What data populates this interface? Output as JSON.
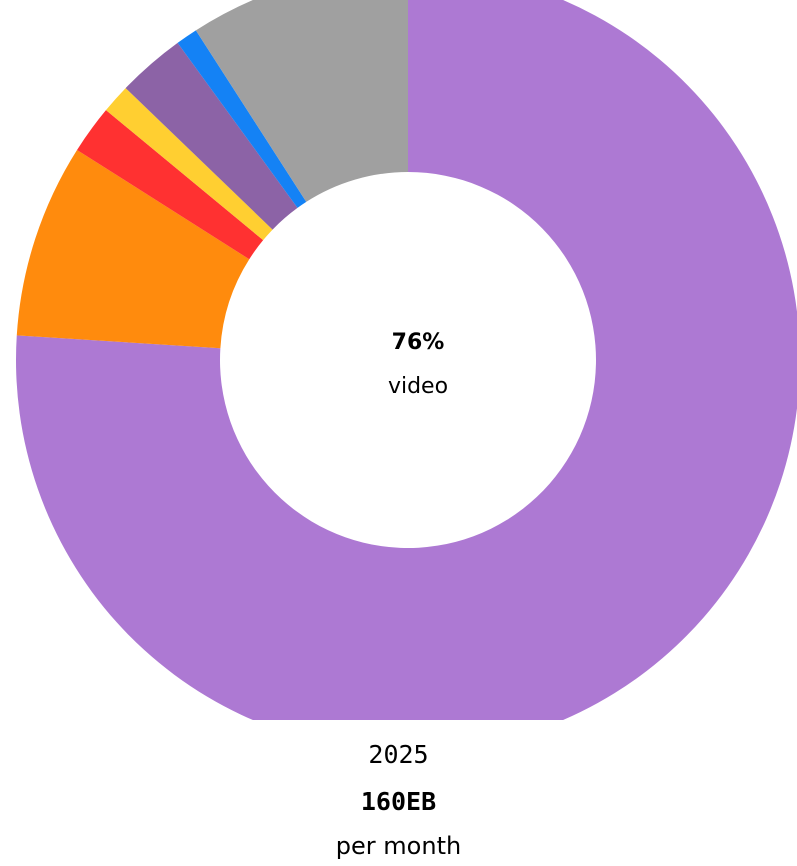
{
  "chart_data": {
    "type": "pie",
    "donut": true,
    "center": {
      "value": "76%",
      "label": "video"
    },
    "slices": [
      {
        "value": 76.0,
        "color": "#ad79d3"
      },
      {
        "value": 8.0,
        "color": "#ff8b0d"
      },
      {
        "value": 2.0,
        "color": "#ff3131"
      },
      {
        "value": 1.2,
        "color": "#ffcf31"
      },
      {
        "value": 2.8,
        "color": "#8c63a6"
      },
      {
        "value": 0.9,
        "color": "#1482f5"
      },
      {
        "value": 9.1,
        "color": "#a0a0a0"
      }
    ]
  },
  "footer": {
    "year": "2025",
    "total": "160EB",
    "unit": "per month"
  }
}
